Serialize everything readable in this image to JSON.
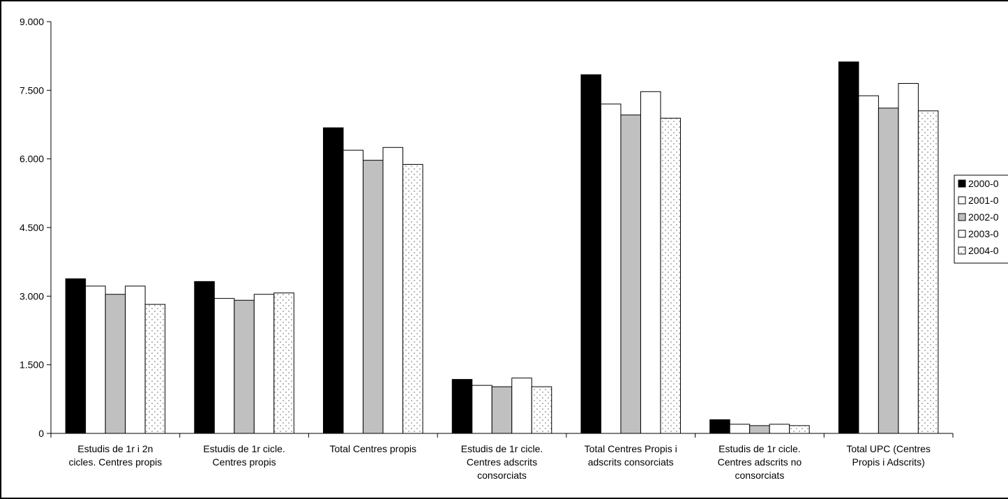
{
  "chart_data": {
    "type": "bar",
    "title": "",
    "xlabel": "",
    "ylabel": "",
    "ylim": [
      0,
      9000
    ],
    "yticks": [
      0,
      1500,
      3000,
      4500,
      6000,
      7500,
      9000
    ],
    "ytick_labels": [
      "0",
      "1.500",
      "3.000",
      "4.500",
      "6.000",
      "7.500",
      "9.000"
    ],
    "grid": false,
    "legend_position": "right",
    "categories": [
      [
        "Estudis de 1r i 2n",
        "cicles. Centres propis"
      ],
      [
        "Estudis de 1r cicle.",
        "Centres propis"
      ],
      [
        "Total Centres propis"
      ],
      [
        "Estudis de 1r cicle.",
        "Centres adscrits",
        "consorciats"
      ],
      [
        "Total Centres Propis i",
        "adscrits consorciats"
      ],
      [
        "Estudis de 1r cicle.",
        "Centres adscrits no",
        "consorciats"
      ],
      [
        "Total UPC (Centres",
        "Propis i Adscrits)"
      ]
    ],
    "series": [
      {
        "name": "2000-0",
        "fill": "#000000",
        "pattern": "solid",
        "values": [
          3380,
          3320,
          6680,
          1180,
          7840,
          300,
          8120
        ]
      },
      {
        "name": "2001-0",
        "fill": "#ffffff",
        "pattern": "solid",
        "values": [
          3220,
          2950,
          6190,
          1050,
          7200,
          200,
          7380
        ]
      },
      {
        "name": "2002-0",
        "fill": "#c0c0c0",
        "pattern": "solid",
        "values": [
          3040,
          2910,
          5970,
          1020,
          6960,
          170,
          7110
        ]
      },
      {
        "name": "2003-0",
        "fill": "#ffffff",
        "pattern": "solid",
        "values": [
          3220,
          3040,
          6250,
          1210,
          7470,
          200,
          7650
        ]
      },
      {
        "name": "2004-0",
        "fill": "#ffffff",
        "pattern": "dots",
        "values": [
          2820,
          3070,
          5880,
          1020,
          6890,
          170,
          7050
        ]
      }
    ]
  }
}
